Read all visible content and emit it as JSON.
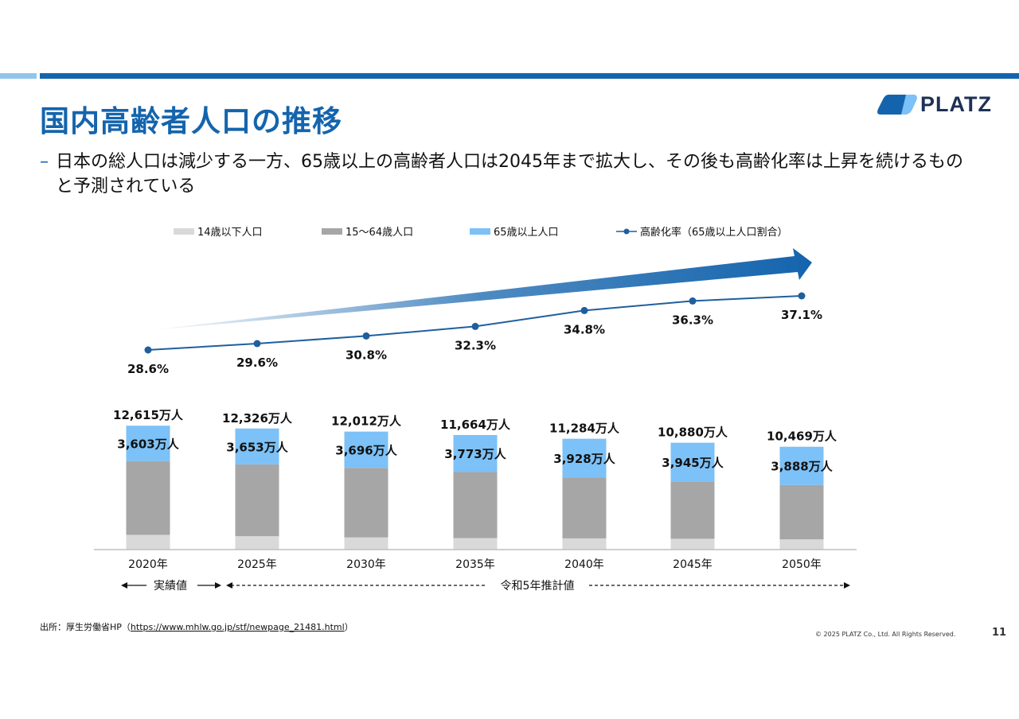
{
  "title": "国内高齢者人口の推移",
  "bullet_dash": "–",
  "bullet": "日本の総人口は減少する一方、65歳以上の高齢者人口は2045年まで拡大し、その後も高齢化率は上昇を続けるものと予測されている",
  "logo": {
    "text": "PLATZ"
  },
  "source": {
    "prefix": "出所：厚生労働省HP（",
    "url": "https://www.mhlw.go.jp/stf/newpage_21481.html",
    "suffix": "）"
  },
  "copyright": "© 2025 PLATZ Co., Ltd. All Rights Reserved.",
  "page_number": "11",
  "colors": {
    "brand_blue": "#1464ad",
    "under14": "#d9d9d9",
    "age15_64": "#a6a6a6",
    "over65": "#7cc1f7",
    "rate_line": "#1f5f9e"
  },
  "chart_data": {
    "type": "bar",
    "stacked": true,
    "categories": [
      "2020年",
      "2025年",
      "2030年",
      "2035年",
      "2040年",
      "2045年",
      "2050年"
    ],
    "series": [
      {
        "name": "14歳以下人口",
        "values": [
          1503,
          1363,
          1240,
          1169,
          1142,
          1103,
          1041
        ]
      },
      {
        "name": "15〜64歳人口",
        "values": [
          7509,
          7310,
          7076,
          6722,
          6214,
          5832,
          5540
        ]
      },
      {
        "name": "65歳以上人口",
        "values": [
          3603,
          3653,
          3696,
          3773,
          3928,
          3945,
          3888
        ]
      }
    ],
    "totals": [
      12615,
      12326,
      12012,
      11664,
      11284,
      10880,
      10469
    ],
    "total_labels": [
      "12,615万人",
      "12,326万人",
      "12,012万人",
      "11,664万人",
      "11,284万人",
      "10,880万人",
      "10,469万人"
    ],
    "over65_labels": [
      "3,603万人",
      "3,653万人",
      "3,696万人",
      "3,773万人",
      "3,928万人",
      "3,945万人",
      "3,888万人"
    ],
    "line_series": {
      "name": "高齢化率（65歳以上人口割合）",
      "values": [
        28.6,
        29.6,
        30.8,
        32.3,
        34.8,
        36.3,
        37.1
      ],
      "labels": [
        "28.6%",
        "29.6%",
        "30.8%",
        "32.3%",
        "34.8%",
        "36.3%",
        "37.1%"
      ]
    },
    "period_labels": {
      "actual": "実績値",
      "projected": "令和5年推計値"
    },
    "legend_position": "top",
    "grid": false
  }
}
